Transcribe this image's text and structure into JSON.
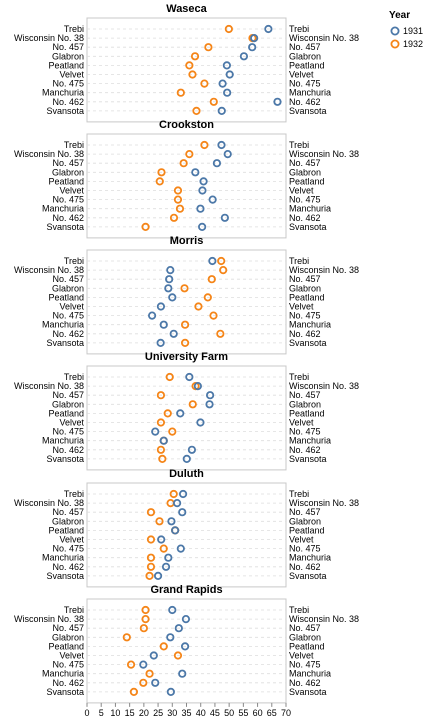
{
  "chart_data": {
    "type": "scatter",
    "title": "",
    "xlabel": "",
    "ylabel": "",
    "xlim": [
      0,
      70
    ],
    "x_ticks": [
      0,
      5,
      10,
      15,
      20,
      25,
      30,
      35,
      40,
      45,
      50,
      55,
      60,
      65,
      70
    ],
    "grid": "horizontal dashed",
    "legend": {
      "title": "Year",
      "placement": "top-right",
      "entries": [
        {
          "label": "1931",
          "color": "#4c78a8"
        },
        {
          "label": "1932",
          "color": "#f58518"
        }
      ]
    },
    "varieties": [
      "Trebi",
      "Wisconsin No. 38",
      "No. 457",
      "Glabron",
      "Peatland",
      "Velvet",
      "No. 475",
      "Manchuria",
      "No. 462",
      "Svansota"
    ],
    "panels": [
      {
        "site": "Waseca",
        "values_1931": [
          63.8,
          58.8,
          58.1,
          55.2,
          49.2,
          50.2,
          47.7,
          49.3,
          67.0,
          47.4
        ],
        "values_1932": [
          49.9,
          58.2,
          42.7,
          38.0,
          36.0,
          37.1,
          41.3,
          33.0,
          44.6,
          38.5
        ]
      },
      {
        "site": "Crookston",
        "values_1931": [
          47.3,
          49.5,
          45.7,
          38.1,
          41.0,
          40.6,
          44.2,
          39.9,
          48.5,
          40.5
        ],
        "values_1932": [
          41.3,
          36.0,
          34.0,
          26.2,
          25.6,
          32.0,
          32.0,
          32.7,
          30.6,
          20.6
        ]
      },
      {
        "site": "Morris",
        "values_1931": [
          44.1,
          29.3,
          28.9,
          28.6,
          30.0,
          26.0,
          22.9,
          27.0,
          30.5,
          25.9
        ],
        "values_1932": [
          47.2,
          47.9,
          43.9,
          34.3,
          42.5,
          39.2,
          44.5,
          34.5,
          46.9,
          34.5
        ]
      },
      {
        "site": "University Farm",
        "values_1931": [
          36.0,
          39.0,
          43.3,
          43.1,
          32.8,
          39.9,
          24.0,
          27.0,
          36.9,
          35.1
        ],
        "values_1932": [
          29.1,
          38.2,
          26.0,
          37.2,
          28.4,
          26.0,
          30.0,
          27.0,
          26.0,
          26.5
        ]
      },
      {
        "site": "Duluth",
        "values_1931": [
          33.8,
          31.7,
          33.5,
          29.7,
          31.0,
          26.1,
          33.0,
          28.6,
          27.8,
          25.0
        ],
        "values_1932": [
          30.5,
          29.4,
          22.5,
          25.5,
          31.0,
          22.5,
          27.0,
          22.5,
          22.5,
          22.0
        ]
      },
      {
        "site": "Grand Rapids",
        "values_1931": [
          30.0,
          34.8,
          32.3,
          29.3,
          34.5,
          23.5,
          19.8,
          33.5,
          24.0,
          29.5
        ],
        "values_1932": [
          20.6,
          20.6,
          20.0,
          14.0,
          27.0,
          32.0,
          15.5,
          22.0,
          19.8,
          16.5
        ]
      }
    ]
  }
}
